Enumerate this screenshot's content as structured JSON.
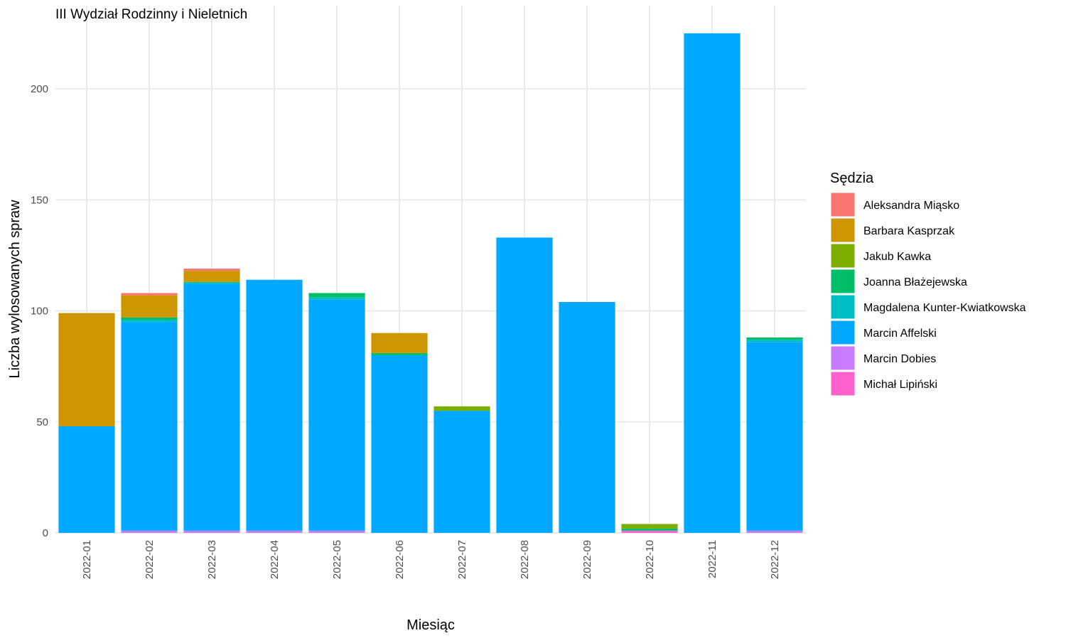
{
  "chart_data": {
    "type": "bar",
    "stacked": true,
    "title": "III Wydział Rodzinny i Nieletnich",
    "xlabel": "Miesiąc",
    "ylabel": "Liczba wylosowanych spraw",
    "ylim": [
      0,
      230
    ],
    "yticks": [
      0,
      50,
      100,
      150,
      200
    ],
    "grid": true,
    "legend_title": "Sędzia",
    "legend_position": "right",
    "categories": [
      "2022-01",
      "2022-02",
      "2022-03",
      "2022-04",
      "2022-05",
      "2022-06",
      "2022-07",
      "2022-08",
      "2022-09",
      "2022-10",
      "2022-11",
      "2022-12"
    ],
    "series": [
      {
        "name": "Aleksandra Miąsko",
        "color": "#F8766D",
        "values": [
          0,
          1,
          1,
          0,
          0,
          0,
          0,
          0,
          0,
          0,
          0,
          0
        ]
      },
      {
        "name": "Barbara Kasprzak",
        "color": "#CD9600",
        "values": [
          51,
          10,
          5,
          0,
          0,
          9,
          0,
          0,
          0,
          0,
          0,
          0
        ]
      },
      {
        "name": "Jakub Kawka",
        "color": "#7CAE00",
        "values": [
          0,
          0,
          0,
          0,
          0,
          0,
          2,
          0,
          0,
          2,
          0,
          0
        ]
      },
      {
        "name": "Joanna Błażejewska",
        "color": "#00BE67",
        "values": [
          0,
          1,
          0,
          0,
          2,
          1,
          0,
          0,
          0,
          1,
          0,
          1
        ]
      },
      {
        "name": "Magdalena Kunter-Kwiatkowska",
        "color": "#00BFC4",
        "values": [
          0,
          1,
          1,
          0,
          1,
          0,
          0,
          0,
          0,
          0,
          0,
          1
        ]
      },
      {
        "name": "Marcin Affelski",
        "color": "#00A9FF",
        "values": [
          48,
          94,
          111,
          113,
          104,
          80,
          55,
          133,
          104,
          0,
          225,
          85
        ]
      },
      {
        "name": "Marcin Dobies",
        "color": "#C77CFF",
        "values": [
          0,
          1,
          1,
          1,
          1,
          0,
          0,
          0,
          0,
          0,
          0,
          1
        ]
      },
      {
        "name": "Michał Lipiński",
        "color": "#FF61CC",
        "values": [
          0,
          0,
          0,
          0,
          0,
          0,
          0,
          0,
          0,
          1,
          0,
          0
        ]
      }
    ]
  }
}
